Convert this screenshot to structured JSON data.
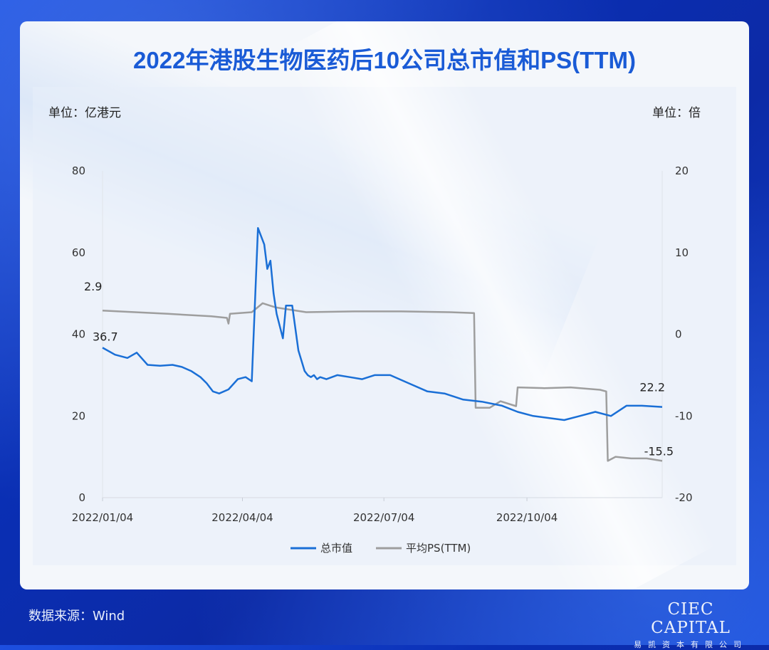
{
  "title": "2022年港股生物医药后10公司总市值和PS(TTM)",
  "unit_left": "单位：亿港元",
  "unit_right": "单位：倍",
  "source": "数据来源：Wind",
  "logo": {
    "main": "CIEC CAPITAL",
    "sub": "易凯资本有限公司"
  },
  "colors": {
    "series1": "#1a6fd6",
    "series2": "#9e9e9e",
    "title": "#1a5bd6"
  },
  "chart_data": {
    "type": "line",
    "title": "2022年港股生物医药后10公司总市值和PS(TTM)",
    "x_start": "2022/01/04",
    "x_end": "2022/12/30",
    "x_ticks": [
      "2022/01/04",
      "2022/04/04",
      "2022/07/04",
      "2022/10/04"
    ],
    "y_left": {
      "label": "单位：亿港元",
      "ylim": [
        0,
        80
      ],
      "ticks": [
        "0",
        "20",
        "40",
        "60",
        "80"
      ]
    },
    "y_right": {
      "label": "单位：倍",
      "ylim": [
        -20,
        20
      ],
      "ticks": [
        "-20",
        "-10",
        "0",
        "10",
        "20"
      ]
    },
    "legend": {
      "position": "bottom",
      "entries": [
        "总市值",
        "平均PS(TTM)"
      ]
    },
    "grid": false,
    "series": [
      {
        "name": "总市值",
        "axis": "left",
        "x": [
          "2022/01/04",
          "2022/01/12",
          "2022/01/20",
          "2022/01/26",
          "2022/02/02",
          "2022/02/10",
          "2022/02/18",
          "2022/02/24",
          "2022/03/02",
          "2022/03/08",
          "2022/03/12",
          "2022/03/16",
          "2022/03/20",
          "2022/03/26",
          "2022/04/01",
          "2022/04/06",
          "2022/04/10",
          "2022/04/14",
          "2022/04/18",
          "2022/04/20",
          "2022/04/22",
          "2022/04/24",
          "2022/04/26",
          "2022/04/28",
          "2022/04/30",
          "2022/05/02",
          "2022/05/06",
          "2022/05/10",
          "2022/05/14",
          "2022/05/16",
          "2022/05/18",
          "2022/05/20",
          "2022/05/22",
          "2022/05/24",
          "2022/05/28",
          "2022/06/04",
          "2022/06/12",
          "2022/06/20",
          "2022/06/28",
          "2022/07/08",
          "2022/07/20",
          "2022/08/01",
          "2022/08/12",
          "2022/08/24",
          "2022/09/05",
          "2022/09/18",
          "2022/09/28",
          "2022/10/08",
          "2022/10/18",
          "2022/10/28",
          "2022/11/07",
          "2022/11/17",
          "2022/11/27",
          "2022/12/07",
          "2022/12/17",
          "2022/12/30"
        ],
        "values": [
          36.7,
          35.0,
          34.2,
          35.5,
          32.5,
          32.3,
          32.5,
          32.0,
          31.0,
          29.5,
          28.0,
          26.0,
          25.5,
          26.5,
          29.0,
          29.5,
          28.5,
          66.0,
          62.0,
          56.0,
          58.0,
          50.0,
          45.0,
          42.0,
          39.0,
          47.0,
          47.0,
          36.0,
          31.0,
          30.0,
          29.5,
          30.0,
          29.0,
          29.5,
          29.0,
          30.0,
          29.5,
          29.0,
          30.0,
          30.0,
          28.0,
          26.0,
          25.5,
          24.0,
          23.5,
          22.5,
          21.0,
          20.0,
          19.5,
          19.0,
          20.0,
          21.0,
          20.0,
          22.5,
          22.5,
          22.2
        ]
      },
      {
        "name": "平均PS(TTM)",
        "axis": "right",
        "x": [
          "2022/01/04",
          "2022/02/15",
          "2022/03/15",
          "2022/03/25",
          "2022/03/26",
          "2022/03/27",
          "2022/04/10",
          "2022/04/17",
          "2022/04/25",
          "2022/05/05",
          "2022/05/15",
          "2022/06/15",
          "2022/07/15",
          "2022/08/15",
          "2022/08/31",
          "2022/09/01",
          "2022/09/10",
          "2022/09/17",
          "2022/09/27",
          "2022/09/28",
          "2022/10/15",
          "2022/11/01",
          "2022/11/20",
          "2022/11/24",
          "2022/11/25",
          "2022/11/30",
          "2022/12/10",
          "2022/12/20",
          "2022/12/30"
        ],
        "values": [
          2.9,
          2.5,
          2.2,
          2.0,
          1.3,
          2.5,
          2.7,
          3.8,
          3.3,
          3.0,
          2.7,
          2.8,
          2.8,
          2.7,
          2.6,
          -9.0,
          -9.0,
          -8.2,
          -8.8,
          -6.5,
          -6.6,
          -6.5,
          -6.8,
          -7.0,
          -15.5,
          -15.0,
          -15.2,
          -15.2,
          -15.5
        ]
      }
    ],
    "data_labels": [
      {
        "series": "总市值",
        "text": "36.7"
      },
      {
        "series": "总市值",
        "text": "22.2"
      },
      {
        "series": "平均PS(TTM)",
        "text": "2.9"
      },
      {
        "series": "平均PS(TTM)",
        "text": "-15.5"
      }
    ]
  }
}
